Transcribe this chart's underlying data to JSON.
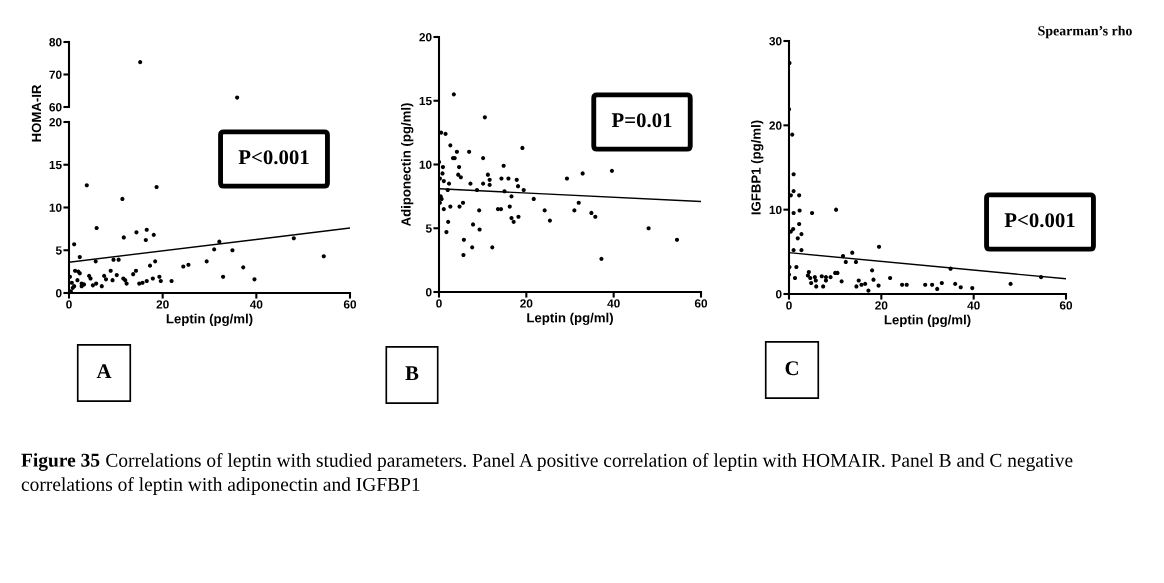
{
  "chart_data": [
    {
      "type": "scatter",
      "xlim": [
        0,
        60
      ],
      "ylim": [
        60,
        80
      ],
      "yticks": [
        60,
        70,
        80
      ],
      "tick_labels": "y",
      "series": [
        {
          "type": "scatter",
          "marker": "circle",
          "color": "#000000",
          "x": [
            15.2,
            35.9
          ],
          "values": [
            73.8,
            62.9
          ]
        }
      ]
    },
    {
      "type": "scatter",
      "xlabel": "Leptin (pg/ml)",
      "ylabel": "HOMA-IR",
      "xlim": [
        0,
        60
      ],
      "ylim": [
        0,
        20
      ],
      "xticks": [
        0,
        20,
        40,
        60
      ],
      "yticks": [
        0,
        5,
        10,
        15,
        20
      ],
      "annotations": [
        "P<0.001",
        "A"
      ],
      "series": [
        {
          "type": "scatter",
          "marker": "circle",
          "color": "#000000",
          "x": [
            1.1,
            3.8,
            5.9,
            11.4,
            11.7,
            14.4,
            16.6,
            16.4,
            18.1,
            18.7,
            2.3,
            5.7,
            9.5,
            10.6,
            18.4,
            17.3,
            24.4,
            25.5,
            29.4,
            31.0,
            32.1,
            34.9,
            32.9,
            37.2,
            39.6,
            48.0,
            54.4,
            0.2,
            0.6,
            0.8,
            0.4,
            1.1,
            1.3,
            2.0,
            2.3,
            1.8,
            2.7,
            3.2,
            2.7,
            4.3,
            4.6,
            5.1,
            5.8,
            7.0,
            7.5,
            7.9,
            8.9,
            9.3,
            10.2,
            11.6,
            12.0,
            12.3,
            13.7,
            14.3,
            15.0,
            15.7,
            16.6,
            17.9,
            19.3,
            19.6,
            21.9
          ],
          "values": [
            5.7,
            12.6,
            7.6,
            11.0,
            6.5,
            7.1,
            7.4,
            6.2,
            6.8,
            12.4,
            4.2,
            3.7,
            3.9,
            3.9,
            3.7,
            3.2,
            3.1,
            3.3,
            3.7,
            5.1,
            6.0,
            5.0,
            1.9,
            3.0,
            1.6,
            6.4,
            4.3,
            1.9,
            1.2,
            0.6,
            0.2,
            0.8,
            2.6,
            2.5,
            2.3,
            1.5,
            1.1,
            1.0,
            0.8,
            2.0,
            1.7,
            0.9,
            1.1,
            0.8,
            2.0,
            1.6,
            2.6,
            1.5,
            2.1,
            1.7,
            1.5,
            1.1,
            2.2,
            2.6,
            1.1,
            1.2,
            1.4,
            1.7,
            1.9,
            1.4,
            1.4
          ]
        },
        {
          "type": "line",
          "marker": "none",
          "line_style": "solid",
          "color": "#000000",
          "x": [
            0,
            60
          ],
          "values": [
            3.6,
            7.6
          ]
        }
      ]
    },
    {
      "type": "scatter",
      "xlabel": "Leptin (pg/ml)",
      "ylabel": "Adiponectin (pg/ml)",
      "xlim": [
        0,
        60
      ],
      "ylim": [
        0,
        20
      ],
      "xticks": [
        0,
        20,
        40,
        60
      ],
      "yticks": [
        0,
        5,
        10,
        15,
        20
      ],
      "annotations": [
        "P=0.01",
        "B"
      ],
      "series": [
        {
          "type": "scatter",
          "marker": "circle",
          "color": "#000000",
          "x": [
            3.4,
            10.5,
            0.5,
            1.5,
            2.6,
            4.1,
            6.9,
            19.1,
            3.2,
            3.6,
            10.1,
            0,
            0.9,
            4.6,
            14.8,
            39.6,
            32.9,
            29.3,
            0.8,
            4.4,
            5.0,
            11.2,
            11.6,
            14.3,
            15.9,
            17.8,
            0.2,
            1.1,
            2.3,
            7.2,
            10.1,
            11.6,
            18.1,
            2.0,
            8.7,
            15.0,
            19.4,
            16.6,
            0.4,
            0.6,
            21.7,
            32.0,
            5.5,
            0.2,
            2.6,
            4.7,
            16.2,
            1.1,
            13.5,
            14.2,
            9.2,
            24.2,
            31.0,
            34.9,
            35.8,
            16.6,
            18.2,
            25.4,
            17.1,
            2.1,
            7.8,
            1.7,
            9.3,
            48.0,
            5.7,
            54.5,
            7.6,
            12.2,
            5.6,
            37.2
          ],
          "values": [
            15.5,
            13.7,
            12.5,
            12.4,
            11.5,
            11.0,
            11.0,
            11.3,
            10.5,
            10.5,
            10.5,
            10.2,
            9.8,
            9.8,
            9.9,
            9.5,
            9.3,
            8.9,
            9.3,
            9.2,
            9.0,
            9.2,
            8.8,
            8.9,
            8.9,
            8.8,
            8.9,
            8.7,
            8.5,
            8.5,
            8.5,
            8.4,
            8.3,
            8.0,
            8.0,
            7.9,
            8.0,
            7.5,
            7.5,
            7.3,
            7.3,
            7.0,
            7.0,
            7.0,
            6.7,
            6.7,
            6.7,
            6.5,
            6.5,
            6.5,
            6.4,
            6.4,
            6.4,
            6.2,
            5.9,
            5.8,
            5.9,
            5.6,
            5.5,
            5.5,
            5.3,
            4.7,
            4.9,
            5.0,
            4.1,
            4.1,
            3.5,
            3.5,
            2.9,
            2.6
          ]
        },
        {
          "type": "line",
          "marker": "none",
          "line_style": "solid",
          "color": "#000000",
          "x": [
            0,
            60
          ],
          "values": [
            8.1,
            7.1
          ]
        }
      ]
    },
    {
      "type": "scatter",
      "xlabel": "Leptin (pg/ml)",
      "ylabel": "IGFBP1 (pg/ml)",
      "xlim": [
        0,
        60
      ],
      "ylim": [
        0,
        30
      ],
      "xticks": [
        0,
        20,
        40,
        60
      ],
      "yticks": [
        0,
        10,
        20,
        30
      ],
      "annotations": [
        "P<0.001",
        "C",
        "Spearman’s rho",
        "Figure 35",
        "Correlations of leptin with studied parameters. Panel A positive correlation of leptin with HOMAIR. Panel B and C negative correlations of leptin with adiponectin and IGFBP1"
      ],
      "series": [
        {
          "type": "scatter",
          "marker": "circle",
          "color": "#000000",
          "x": [
            0.1,
            0,
            0.7,
            1.0,
            1.0,
            0.4,
            2.2,
            1.0,
            2.3,
            5.0,
            10.2,
            0.9,
            0.4,
            2.7,
            2.2,
            1.9,
            1.0,
            2.7,
            19.5,
            13.7,
            11.7,
            12.3,
            14.5,
            1.6,
            0.1,
            0,
            1.3,
            4.3,
            4.1,
            4.6,
            5.6,
            5.8,
            7.1,
            8.0,
            9.0,
            10.0,
            10.5,
            11.4,
            4.8,
            5.9,
            7.4,
            8.0,
            14.6,
            15.1,
            15.7,
            16.5,
            17.2,
            18.0,
            18.3,
            19.4,
            21.9,
            24.5,
            25.5,
            29.5,
            31.0,
            32.1,
            33.1,
            35.0,
            36.0,
            37.2,
            39.7,
            48.0,
            54.6
          ],
          "values": [
            27.4,
            21.9,
            18.9,
            14.2,
            12.2,
            11.7,
            11.7,
            9.6,
            9.9,
            9.6,
            10.0,
            7.7,
            7.4,
            7.1,
            8.3,
            6.6,
            5.2,
            5.2,
            5.6,
            4.9,
            4.5,
            3.8,
            3.8,
            3.2,
            3.2,
            2.3,
            1.9,
            2.6,
            2.2,
            1.9,
            2.0,
            1.6,
            2.1,
            2.0,
            2.0,
            2.5,
            2.5,
            1.5,
            1.3,
            0.9,
            0.9,
            1.6,
            0.9,
            1.6,
            1.1,
            1.2,
            0.4,
            2.8,
            1.7,
            1.0,
            1.9,
            1.1,
            1.1,
            1.1,
            1.1,
            0.6,
            1.3,
            3.0,
            1.2,
            0.8,
            0.7,
            1.2,
            2.0
          ]
        },
        {
          "type": "line",
          "marker": "none",
          "line_style": "solid",
          "color": "#000000",
          "x": [
            0,
            60
          ],
          "values": [
            4.9,
            1.8
          ]
        }
      ]
    }
  ]
}
